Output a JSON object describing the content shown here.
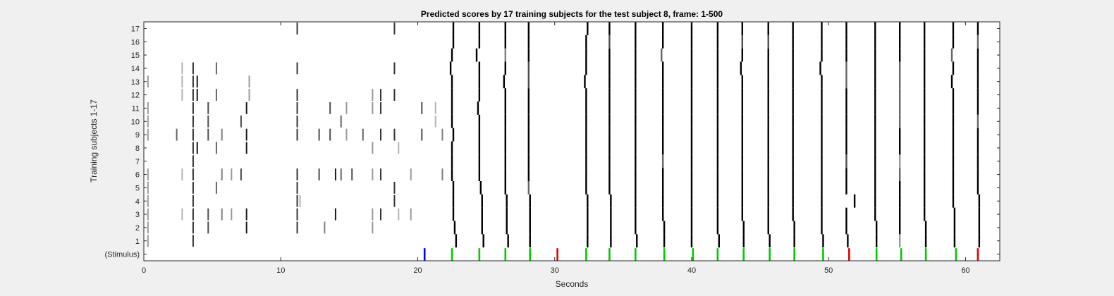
{
  "chart_data": {
    "type": "heatmap",
    "title": "Predicted scores by 17 training subjects for the test subject 8, frame: 1-500",
    "xlabel": "Seconds",
    "ylabel": "Training subjects 1-17",
    "xlim": [
      0,
      62.5
    ],
    "x_ticks": [
      "0",
      "10",
      "20",
      "30",
      "40",
      "50",
      "60"
    ],
    "y_tick_labels": [
      "(Stimulus)",
      "1",
      "2",
      "3",
      "4",
      "5",
      "6",
      "7",
      "8",
      "9",
      "10",
      "11",
      "12",
      "13",
      "14",
      "15",
      "16",
      "17"
    ],
    "colormap": "grayscale (white = low, black = high)",
    "stimulus": [
      {
        "t": 20.5,
        "color": "#0000ff"
      },
      {
        "t": 22.5,
        "color": "#00cc00"
      },
      {
        "t": 24.5,
        "color": "#00cc00"
      },
      {
        "t": 26.4,
        "color": "#00cc00"
      },
      {
        "t": 28.2,
        "color": "#00cc00"
      },
      {
        "t": 30.2,
        "color": "#e00000"
      },
      {
        "t": 32.3,
        "color": "#00cc00"
      },
      {
        "t": 34.0,
        "color": "#00cc00"
      },
      {
        "t": 35.9,
        "color": "#00cc00"
      },
      {
        "t": 38.0,
        "color": "#00cc00"
      },
      {
        "t": 40.1,
        "color": "#00cc00"
      },
      {
        "t": 41.9,
        "color": "#00cc00"
      },
      {
        "t": 43.8,
        "color": "#00cc00"
      },
      {
        "t": 45.7,
        "color": "#00cc00"
      },
      {
        "t": 47.5,
        "color": "#00cc00"
      },
      {
        "t": 49.6,
        "color": "#00cc00"
      },
      {
        "t": 51.5,
        "color": "#e00000"
      },
      {
        "t": 53.5,
        "color": "#00cc00"
      },
      {
        "t": 55.3,
        "color": "#00cc00"
      },
      {
        "t": 57.1,
        "color": "#00cc00"
      },
      {
        "t": 59.3,
        "color": "#00cc00"
      },
      {
        "t": 60.9,
        "color": "#e00000"
      }
    ],
    "response_events": [
      {
        "t": 22.5,
        "offsets": [
          0.3,
          0.2,
          0.1,
          0.1,
          0.1,
          0.0,
          0.0,
          0.0,
          0.1,
          0.0,
          0.0,
          0.0,
          0.0,
          -0.1,
          0.0,
          0.1,
          0.1
        ],
        "shade": [
          0,
          0,
          0,
          0,
          0,
          0,
          0,
          0,
          0,
          0,
          0,
          0,
          0,
          0,
          0,
          0,
          0
        ]
      },
      {
        "t": 24.5,
        "offsets": [
          0.3,
          0.2,
          0.2,
          0.2,
          0.1,
          0.0,
          0.0,
          0.0,
          0.0,
          0.0,
          -0.1,
          0.0,
          0.0,
          0.0,
          -0.2,
          0.0,
          0.0
        ],
        "shade": [
          0,
          0,
          0,
          0,
          0,
          0,
          0,
          0,
          0,
          0,
          0,
          0,
          0,
          0,
          0,
          0,
          0
        ]
      },
      {
        "t": 26.4,
        "offsets": [
          0.2,
          0.1,
          0.1,
          0.1,
          0.0,
          0.0,
          0.0,
          0.0,
          0.0,
          0.0,
          0.0,
          0.0,
          -0.1,
          0.0,
          0.0,
          0.0,
          0.0
        ],
        "shade": [
          0,
          0,
          0,
          0,
          0,
          0,
          0,
          0,
          0,
          0,
          0,
          0,
          0,
          0,
          0.5,
          0,
          0
        ]
      },
      {
        "t": 28.1,
        "offsets": [
          0.1,
          0.1,
          0.1,
          0.1,
          0.0,
          0.0,
          0.0,
          0.0,
          0.0,
          0.0,
          0.0,
          0.0,
          0.0,
          0.0,
          0.0,
          0.0,
          0.0
        ],
        "shade": [
          0,
          0,
          0,
          0,
          0.4,
          0,
          0,
          0,
          0,
          0,
          0,
          0,
          0.3,
          0.3,
          0,
          0,
          0
        ]
      },
      {
        "t": 32.3,
        "offsets": [
          0.1,
          0.1,
          0.1,
          0.1,
          0.0,
          0.0,
          0.0,
          0.0,
          0.0,
          0.0,
          0.0,
          0.0,
          -0.1,
          0.0,
          0.0,
          0.0,
          0.1
        ],
        "shade": [
          0,
          0,
          0,
          0,
          0,
          0,
          0,
          0,
          0,
          0,
          0,
          0,
          0,
          0,
          0,
          0,
          0
        ]
      },
      {
        "t": 34.0,
        "offsets": [
          0.1,
          0.1,
          0.1,
          0.1,
          0.0,
          0.0,
          0.0,
          0.0,
          0.0,
          0.0,
          0.0,
          0.0,
          0.0,
          0.0,
          0.0,
          0.0,
          0.0
        ],
        "shade": [
          0,
          0,
          0,
          0,
          0,
          0,
          0,
          0,
          0,
          0,
          0,
          0,
          0,
          0,
          0,
          0.3,
          0
        ]
      },
      {
        "t": 35.9,
        "offsets": [
          0.1,
          0.0,
          0.0,
          0.0,
          0.0,
          0.0,
          0.0,
          0.0,
          0.0,
          0.0,
          0.0,
          0.0,
          0.0,
          0.0,
          0.0,
          0.0,
          0.0
        ],
        "shade": [
          0,
          0,
          0,
          0,
          0,
          0,
          0,
          0,
          0,
          0,
          0,
          0,
          0,
          0,
          0,
          0,
          0
        ]
      },
      {
        "t": 37.9,
        "offsets": [
          0.1,
          0.1,
          0.0,
          0.0,
          0.0,
          0.0,
          0.0,
          0.0,
          0.0,
          0.0,
          0.0,
          0.0,
          0.0,
          0.0,
          -0.1,
          0.0,
          0.0
        ],
        "shade": [
          0,
          0,
          0,
          0,
          0,
          0,
          0.4,
          0,
          0,
          0,
          0,
          0,
          0,
          0,
          0.4,
          0,
          0
        ]
      },
      {
        "t": 40.0,
        "offsets": [
          0.0,
          0.0,
          0.0,
          0.0,
          0.0,
          0.0,
          0.0,
          0.0,
          0.0,
          0.0,
          0.0,
          0.0,
          0.0,
          0.0,
          0.0,
          0.0,
          0.0
        ],
        "shade": [
          0,
          0,
          0,
          0,
          0,
          0,
          0,
          0,
          0,
          0,
          0,
          0,
          0,
          0,
          0,
          0,
          0
        ]
      },
      {
        "t": 41.9,
        "offsets": [
          0.1,
          0.0,
          0.0,
          0.0,
          0.0,
          0.0,
          0.0,
          0.0,
          0.0,
          0.0,
          0.0,
          0.0,
          0.0,
          0.0,
          0.0,
          0.0,
          0.0
        ],
        "shade": [
          0,
          0,
          0,
          0,
          0,
          0,
          0,
          0,
          0,
          0,
          0,
          0,
          0,
          0,
          0,
          0,
          0
        ]
      },
      {
        "t": 43.7,
        "offsets": [
          0.1,
          0.1,
          0.0,
          0.0,
          0.0,
          0.0,
          0.0,
          0.0,
          0.0,
          0.0,
          0.0,
          0.0,
          0.0,
          -0.1,
          0.0,
          0.0,
          0.0
        ],
        "shade": [
          0,
          0,
          0,
          0,
          0,
          0,
          0,
          0,
          0,
          0,
          0,
          0,
          0,
          0,
          0,
          0.3,
          0
        ]
      },
      {
        "t": 45.6,
        "offsets": [
          0.1,
          0.0,
          0.0,
          0.0,
          0.0,
          0.0,
          0.0,
          0.0,
          0.0,
          0.0,
          0.0,
          0.0,
          0.0,
          0.0,
          0.0,
          0.0,
          0.0
        ],
        "shade": [
          0,
          0,
          0,
          0,
          0,
          0,
          0,
          0,
          0,
          0,
          0,
          0,
          0,
          0,
          0,
          0.3,
          0
        ]
      },
      {
        "t": 47.4,
        "offsets": [
          0.1,
          0.1,
          0.0,
          0.0,
          0.0,
          0.0,
          0.0,
          0.0,
          0.0,
          0.0,
          0.0,
          0.0,
          0.0,
          0.0,
          0.0,
          0.0,
          0.0
        ],
        "shade": [
          0,
          0,
          0,
          0,
          0,
          0,
          0,
          0,
          0,
          0,
          0,
          0,
          0,
          0,
          0,
          0,
          0
        ]
      },
      {
        "t": 49.5,
        "offsets": [
          0.1,
          0.0,
          0.0,
          0.0,
          0.0,
          0.0,
          0.0,
          0.0,
          0.0,
          0.0,
          0.0,
          0.0,
          0.0,
          -0.1,
          0.0,
          0.0,
          0.0
        ],
        "shade": [
          0,
          0,
          0,
          0,
          0,
          0,
          0,
          0,
          0,
          0,
          0,
          0,
          0,
          0,
          0,
          0,
          0
        ]
      },
      {
        "t": 51.3,
        "offsets": [
          0.1,
          0.0,
          0.0,
          0.6,
          0.0,
          0.0,
          0.0,
          0.0,
          0.0,
          0.0,
          0.0,
          0.0,
          0.0,
          0.0,
          0.0,
          0.0,
          0.0
        ],
        "shade": [
          0,
          0,
          0,
          0,
          0,
          0,
          0.3,
          0,
          0,
          0,
          0,
          0,
          0.4,
          0.4,
          0,
          0,
          0
        ]
      },
      {
        "t": 53.4,
        "offsets": [
          0.1,
          0.1,
          0.0,
          0.0,
          0.0,
          0.0,
          0.0,
          0.0,
          0.0,
          0.0,
          0.0,
          0.0,
          0.0,
          0.0,
          0.0,
          0.0,
          0.0
        ],
        "shade": [
          0,
          0,
          0,
          0,
          0,
          0,
          0,
          0,
          0,
          0,
          0,
          0,
          0,
          0,
          0,
          0,
          0
        ]
      },
      {
        "t": 55.2,
        "offsets": [
          0.0,
          0.0,
          0.0,
          0.0,
          0.0,
          0.0,
          0.0,
          0.0,
          0.0,
          0.0,
          0.0,
          0.0,
          0.0,
          0.0,
          0.0,
          0.0,
          0.0
        ],
        "shade": [
          0.6,
          0,
          0,
          0,
          0,
          0.4,
          0.6,
          0,
          0,
          0.4,
          0.4,
          0.4,
          0.4,
          0.4,
          0,
          0,
          0
        ]
      },
      {
        "t": 57.0,
        "offsets": [
          0.1,
          0.1,
          0.0,
          0.0,
          0.0,
          0.0,
          0.0,
          0.0,
          0.0,
          0.0,
          0.0,
          0.0,
          0.0,
          0.0,
          0.0,
          0.0,
          0.0
        ],
        "shade": [
          0,
          0,
          0,
          0,
          0,
          0,
          0,
          0,
          0,
          0,
          0,
          0,
          0,
          0,
          0,
          0,
          0
        ]
      },
      {
        "t": 59.1,
        "offsets": [
          0.1,
          0.1,
          0.1,
          0.0,
          0.0,
          0.0,
          0.0,
          0.0,
          0.0,
          0.0,
          0.0,
          0.0,
          -0.1,
          0.0,
          -0.1,
          0.0,
          0.0
        ],
        "shade": [
          0,
          0,
          0,
          0,
          0,
          0,
          0,
          0,
          0,
          0,
          0,
          0,
          0,
          0,
          0.4,
          0,
          0
        ]
      },
      {
        "t": 60.9,
        "offsets": [
          0.1,
          0.1,
          0.1,
          0.1,
          0.0,
          0.0,
          0.0,
          0.0,
          0.0,
          0.0,
          0.0,
          0.0,
          0.0,
          0.0,
          0.0,
          0.0,
          0.0
        ],
        "shade": [
          0,
          0,
          0,
          0,
          0,
          0,
          0,
          0,
          0,
          0.4,
          0,
          0,
          0,
          0,
          0,
          0.4,
          0
        ]
      }
    ],
    "early_marks": [
      {
        "t": 0.3,
        "subjects": [
          1,
          2,
          3,
          4,
          5,
          6,
          9,
          10,
          11,
          13
        ],
        "shade": 0.6
      },
      {
        "t": 3.6,
        "subjects": [
          1,
          2,
          3,
          4,
          5,
          6,
          7,
          8,
          9,
          10,
          11,
          12,
          13,
          14
        ],
        "shade": 0.2
      },
      {
        "t": 2.8,
        "subjects": [
          3,
          6,
          12,
          13,
          14
        ],
        "shade": 0.7
      },
      {
        "t": 2.4,
        "subjects": [
          9
        ],
        "shade": 0.4
      },
      {
        "t": 3.9,
        "subjects": [
          8,
          12,
          13
        ],
        "shade": 0.1
      },
      {
        "t": 4.7,
        "subjects": [
          2,
          3,
          9,
          10,
          11
        ],
        "shade": 0.3
      },
      {
        "t": 5.3,
        "subjects": [
          5,
          8,
          12,
          14
        ],
        "shade": 0.4
      },
      {
        "t": 5.7,
        "subjects": [
          3,
          6,
          9
        ],
        "shade": 0.5
      },
      {
        "t": 6.4,
        "subjects": [
          3,
          6
        ],
        "shade": 0.6
      },
      {
        "t": 7.1,
        "subjects": [
          6,
          10
        ],
        "shade": 0.3
      },
      {
        "t": 7.5,
        "subjects": [
          2,
          3,
          8,
          9,
          11
        ],
        "shade": 0.1
      },
      {
        "t": 7.7,
        "subjects": [
          12,
          13
        ],
        "shade": 0.6
      },
      {
        "t": 11.2,
        "subjects": [
          2,
          3,
          4,
          5,
          6,
          9,
          10,
          11,
          12,
          14,
          17
        ],
        "shade": 0.2
      },
      {
        "t": 11.4,
        "subjects": [
          4
        ],
        "shade": 0.7
      },
      {
        "t": 12.8,
        "subjects": [
          6,
          9
        ],
        "shade": 0.3
      },
      {
        "t": 13.2,
        "subjects": [
          2
        ],
        "shade": 0.5
      },
      {
        "t": 13.6,
        "subjects": [
          9,
          11
        ],
        "shade": 0.3
      },
      {
        "t": 14.0,
        "subjects": [
          3,
          6
        ],
        "shade": 0.1
      },
      {
        "t": 14.4,
        "subjects": [
          6,
          10
        ],
        "shade": 0.4
      },
      {
        "t": 14.8,
        "subjects": [
          9,
          11
        ],
        "shade": 0.6
      },
      {
        "t": 15.2,
        "subjects": [
          6
        ],
        "shade": 0.3
      },
      {
        "t": 16.0,
        "subjects": [
          9
        ],
        "shade": 0.4
      },
      {
        "t": 16.7,
        "subjects": [
          2,
          3,
          6,
          8,
          11,
          12
        ],
        "shade": 0.6
      },
      {
        "t": 17.3,
        "subjects": [
          3,
          6,
          9,
          11,
          12
        ],
        "shade": 0.2
      },
      {
        "t": 18.3,
        "subjects": [
          4,
          5,
          9,
          12,
          14,
          17
        ],
        "shade": 0.2
      },
      {
        "t": 18.6,
        "subjects": [
          3,
          8
        ],
        "shade": 0.7
      },
      {
        "t": 19.5,
        "subjects": [
          3,
          6
        ],
        "shade": 0.6
      },
      {
        "t": 20.3,
        "subjects": [
          9,
          11
        ],
        "shade": 0.3
      },
      {
        "t": 21.3,
        "subjects": [
          10,
          11
        ],
        "shade": 0.7
      },
      {
        "t": 21.8,
        "subjects": [
          6,
          9
        ],
        "shade": 0.5
      }
    ]
  }
}
